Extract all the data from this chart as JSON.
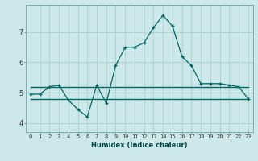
{
  "title": "",
  "xlabel": "Humidex (Indice chaleur)",
  "ylabel": "",
  "background_color": "#cce8e8",
  "grid_color": "#aacece",
  "line_color": "#006666",
  "x": [
    0,
    1,
    2,
    3,
    4,
    5,
    6,
    7,
    8,
    9,
    10,
    11,
    12,
    13,
    14,
    15,
    16,
    17,
    18,
    19,
    20,
    21,
    22,
    23
  ],
  "y_main": [
    4.95,
    4.95,
    5.2,
    5.25,
    4.75,
    4.45,
    4.2,
    5.25,
    4.65,
    5.9,
    6.5,
    6.5,
    6.65,
    7.15,
    7.55,
    7.2,
    6.2,
    5.9,
    5.3,
    5.3,
    5.3,
    5.25,
    5.2,
    4.8
  ],
  "y_ref1": [
    5.2,
    5.2,
    5.2,
    5.2,
    5.2,
    5.2,
    5.2,
    5.2,
    5.2,
    5.2,
    5.2,
    5.2,
    5.2,
    5.2,
    5.2,
    5.2,
    5.2,
    5.2,
    5.2,
    5.2,
    5.2,
    5.2,
    5.2,
    5.2
  ],
  "y_ref2": [
    4.8,
    4.8,
    4.8,
    4.8,
    4.8,
    4.8,
    4.8,
    4.8,
    4.8,
    4.8,
    4.8,
    4.8,
    4.8,
    4.8,
    4.8,
    4.8,
    4.8,
    4.8,
    4.8,
    4.8,
    4.8,
    4.8,
    4.8,
    4.8
  ],
  "ylim": [
    3.7,
    7.9
  ],
  "xlim": [
    -0.5,
    23.5
  ],
  "yticks": [
    4,
    5,
    6,
    7
  ],
  "xticks": [
    0,
    1,
    2,
    3,
    4,
    5,
    6,
    7,
    8,
    9,
    10,
    11,
    12,
    13,
    14,
    15,
    16,
    17,
    18,
    19,
    20,
    21,
    22,
    23
  ],
  "xlabel_fontsize": 6.0,
  "xlabel_color": "#004444",
  "tick_labelsize": 5.0,
  "ytick_labelsize": 6.0
}
